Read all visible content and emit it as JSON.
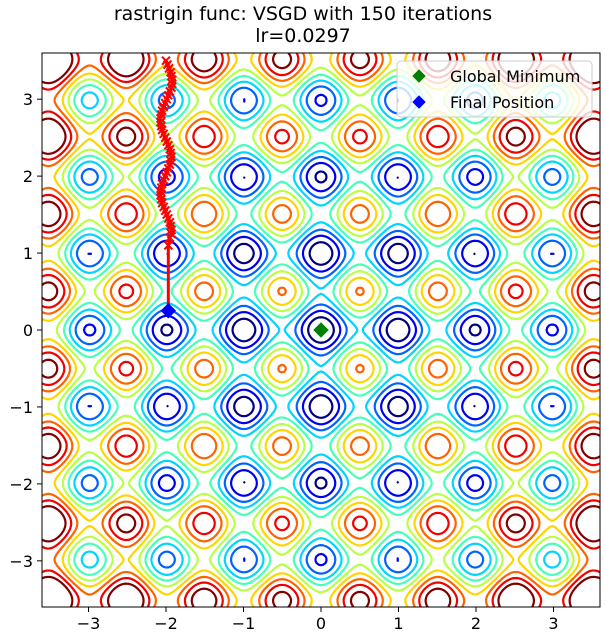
{
  "chart_data": {
    "type": "contour",
    "title": "rastrigin func: VSGD with 150 iterations",
    "subtitle": "lr=0.0297",
    "function": "rastrigin",
    "optimizer": "VSGD",
    "iterations": 150,
    "learning_rate": 0.0297,
    "xlim": [
      -3.6,
      3.6
    ],
    "ylim": [
      -3.6,
      3.6
    ],
    "xticks": [
      -3,
      -2,
      -1,
      0,
      1,
      2,
      3
    ],
    "yticks": [
      -3,
      -2,
      -1,
      0,
      1,
      2,
      3
    ],
    "xtick_labels": [
      "−3",
      "−2",
      "−1",
      "0",
      "1",
      "2",
      "3"
    ],
    "ytick_labels": [
      "−3",
      "−2",
      "−1",
      "0",
      "1",
      "2",
      "3"
    ],
    "grid": false,
    "colormap": "jet",
    "contour_levels": [
      5,
      10,
      15,
      20,
      25,
      30,
      35,
      40,
      45,
      50
    ],
    "legend": {
      "placement": "upper-right",
      "entries": [
        {
          "label": "Global Minimum",
          "color": "#008000",
          "marker": "diamond"
        },
        {
          "label": "Final Position",
          "color": "#0000ff",
          "marker": "diamond"
        }
      ]
    },
    "global_minimum": {
      "x": 0,
      "y": 0
    },
    "final_position": {
      "x": -1.97,
      "y": 0.25
    },
    "trajectory": {
      "color": "#ff0000",
      "marker": "x",
      "x": [
        -2.0,
        -1.98,
        -1.96,
        -1.94,
        -1.93,
        -1.92,
        -1.92,
        -1.93,
        -1.95,
        -1.97,
        -1.99,
        -2.01,
        -2.03,
        -2.05,
        -2.06,
        -2.07,
        -2.07,
        -2.06,
        -2.05,
        -2.03,
        -2.01,
        -1.99,
        -1.97,
        -1.95,
        -1.94,
        -1.93,
        -1.94,
        -1.95,
        -1.97,
        -1.99,
        -2.01,
        -2.03,
        -2.05,
        -2.06,
        -2.07,
        -2.07,
        -2.06,
        -2.05,
        -2.03,
        -2.01,
        -1.99,
        -1.97,
        -1.95,
        -1.94,
        -1.93,
        -1.93,
        -1.95,
        -1.97
      ],
      "y": [
        3.5,
        3.45,
        3.4,
        3.35,
        3.3,
        3.25,
        3.2,
        3.15,
        3.1,
        3.05,
        3.0,
        2.95,
        2.9,
        2.85,
        2.8,
        2.75,
        2.7,
        2.65,
        2.6,
        2.55,
        2.5,
        2.45,
        2.4,
        2.35,
        2.3,
        2.25,
        2.2,
        2.15,
        2.1,
        2.05,
        2.0,
        1.95,
        1.9,
        1.85,
        1.8,
        1.75,
        1.7,
        1.65,
        1.6,
        1.55,
        1.5,
        1.45,
        1.4,
        1.35,
        1.3,
        1.25,
        1.2,
        1.1
      ]
    }
  }
}
